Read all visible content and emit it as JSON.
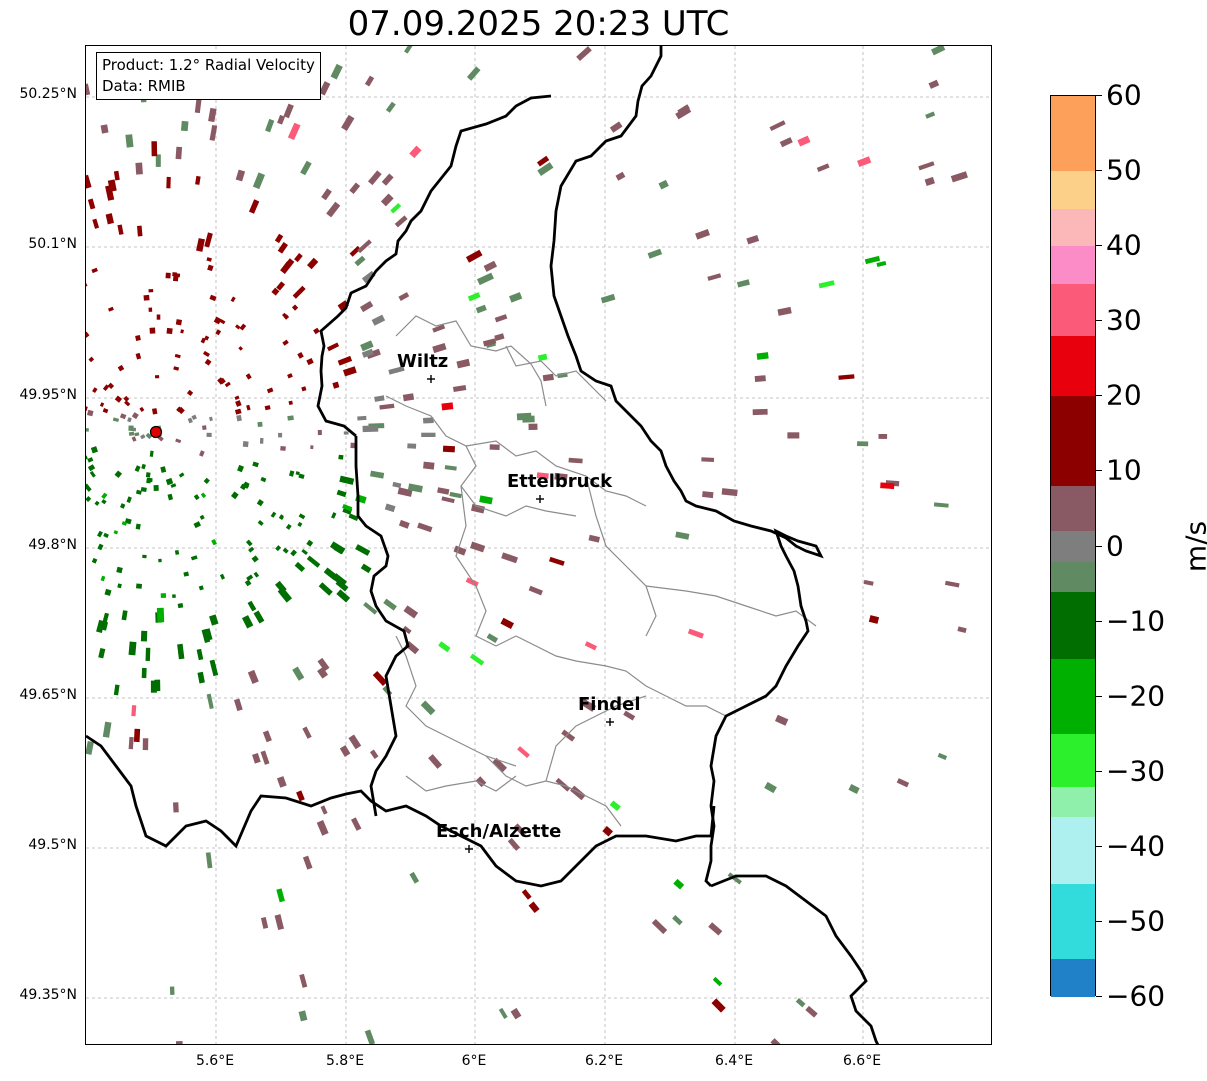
{
  "title": "07.09.2025 20:23 UTC",
  "info_box": {
    "product": "Product: 1.2° Radial Velocity",
    "data_source": "Data: RMIB"
  },
  "latitude_labels": [
    "50.25°N",
    "50.1°N",
    "49.95°N",
    "49.8°N",
    "49.65°N",
    "49.5°N",
    "49.35°N"
  ],
  "longitude_labels": [
    "5.6°E",
    "5.8°E",
    "6°E",
    "6.2°E",
    "6.4°E",
    "6.6°E"
  ],
  "cities": [
    {
      "name": "Wiltz"
    },
    {
      "name": "Ettelbruck"
    },
    {
      "name": "Findel"
    },
    {
      "name": "Esch/Alzette"
    }
  ],
  "colorbar": {
    "unit": "m/s",
    "tick_labels": [
      "60",
      "50",
      "40",
      "30",
      "20",
      "10",
      "0",
      "−10",
      "−20",
      "−30",
      "−40",
      "−50",
      "−60"
    ],
    "min": -60,
    "max": 60,
    "color_stops": [
      {
        "from": 50,
        "to": 60,
        "color": "#fca05a"
      },
      {
        "from": 45,
        "to": 50,
        "color": "#fdd08a"
      },
      {
        "from": 40,
        "to": 45,
        "color": "#fcb8b8"
      },
      {
        "from": 35,
        "to": 40,
        "color": "#fc8cc8"
      },
      {
        "from": 28,
        "to": 35,
        "color": "#fb5a78"
      },
      {
        "from": 20,
        "to": 28,
        "color": "#e8000c"
      },
      {
        "from": 8,
        "to": 20,
        "color": "#8c0000"
      },
      {
        "from": 2,
        "to": 8,
        "color": "#8a5a64"
      },
      {
        "from": -2,
        "to": 2,
        "color": "#7e7e7e"
      },
      {
        "from": -6,
        "to": -2,
        "color": "#5f8a62"
      },
      {
        "from": -15,
        "to": -6,
        "color": "#006e00"
      },
      {
        "from": -25,
        "to": -15,
        "color": "#00b000"
      },
      {
        "from": -32,
        "to": -25,
        "color": "#2cf02c"
      },
      {
        "from": -36,
        "to": -32,
        "color": "#8ef0aa"
      },
      {
        "from": -45,
        "to": -36,
        "color": "#aef0f0"
      },
      {
        "from": -55,
        "to": -45,
        "color": "#32dcdc"
      },
      {
        "from": -60,
        "to": -55,
        "color": "#2080c8"
      }
    ]
  },
  "radar_site_color": "#e00000",
  "map_colors": {
    "national_border": "#000000",
    "canton_border": "#8c8c8c",
    "grid": "#b4b4b4"
  }
}
